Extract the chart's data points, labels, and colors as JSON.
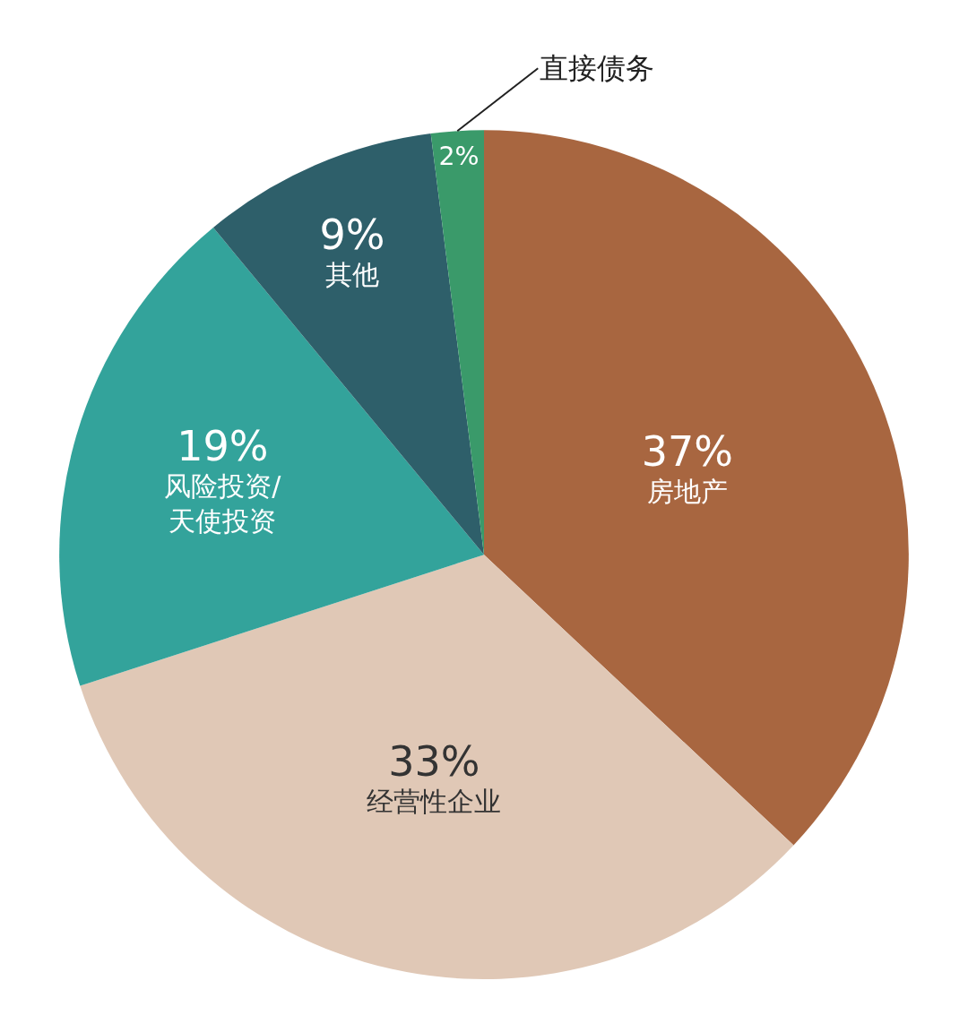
{
  "chart_data": {
    "type": "pie",
    "categories": [
      "房地产",
      "经营性企业",
      "风险投资/\n天使投资",
      "其他",
      "直接债务"
    ],
    "values": [
      37,
      33,
      19,
      9,
      2
    ],
    "colors": [
      "#a86640",
      "#e0c8b6",
      "#33a39b",
      "#2e5f6a",
      "#3a9a6a"
    ],
    "value_labels": [
      "37%",
      "33%",
      "19%",
      "9%",
      "2%"
    ],
    "legend": false
  }
}
